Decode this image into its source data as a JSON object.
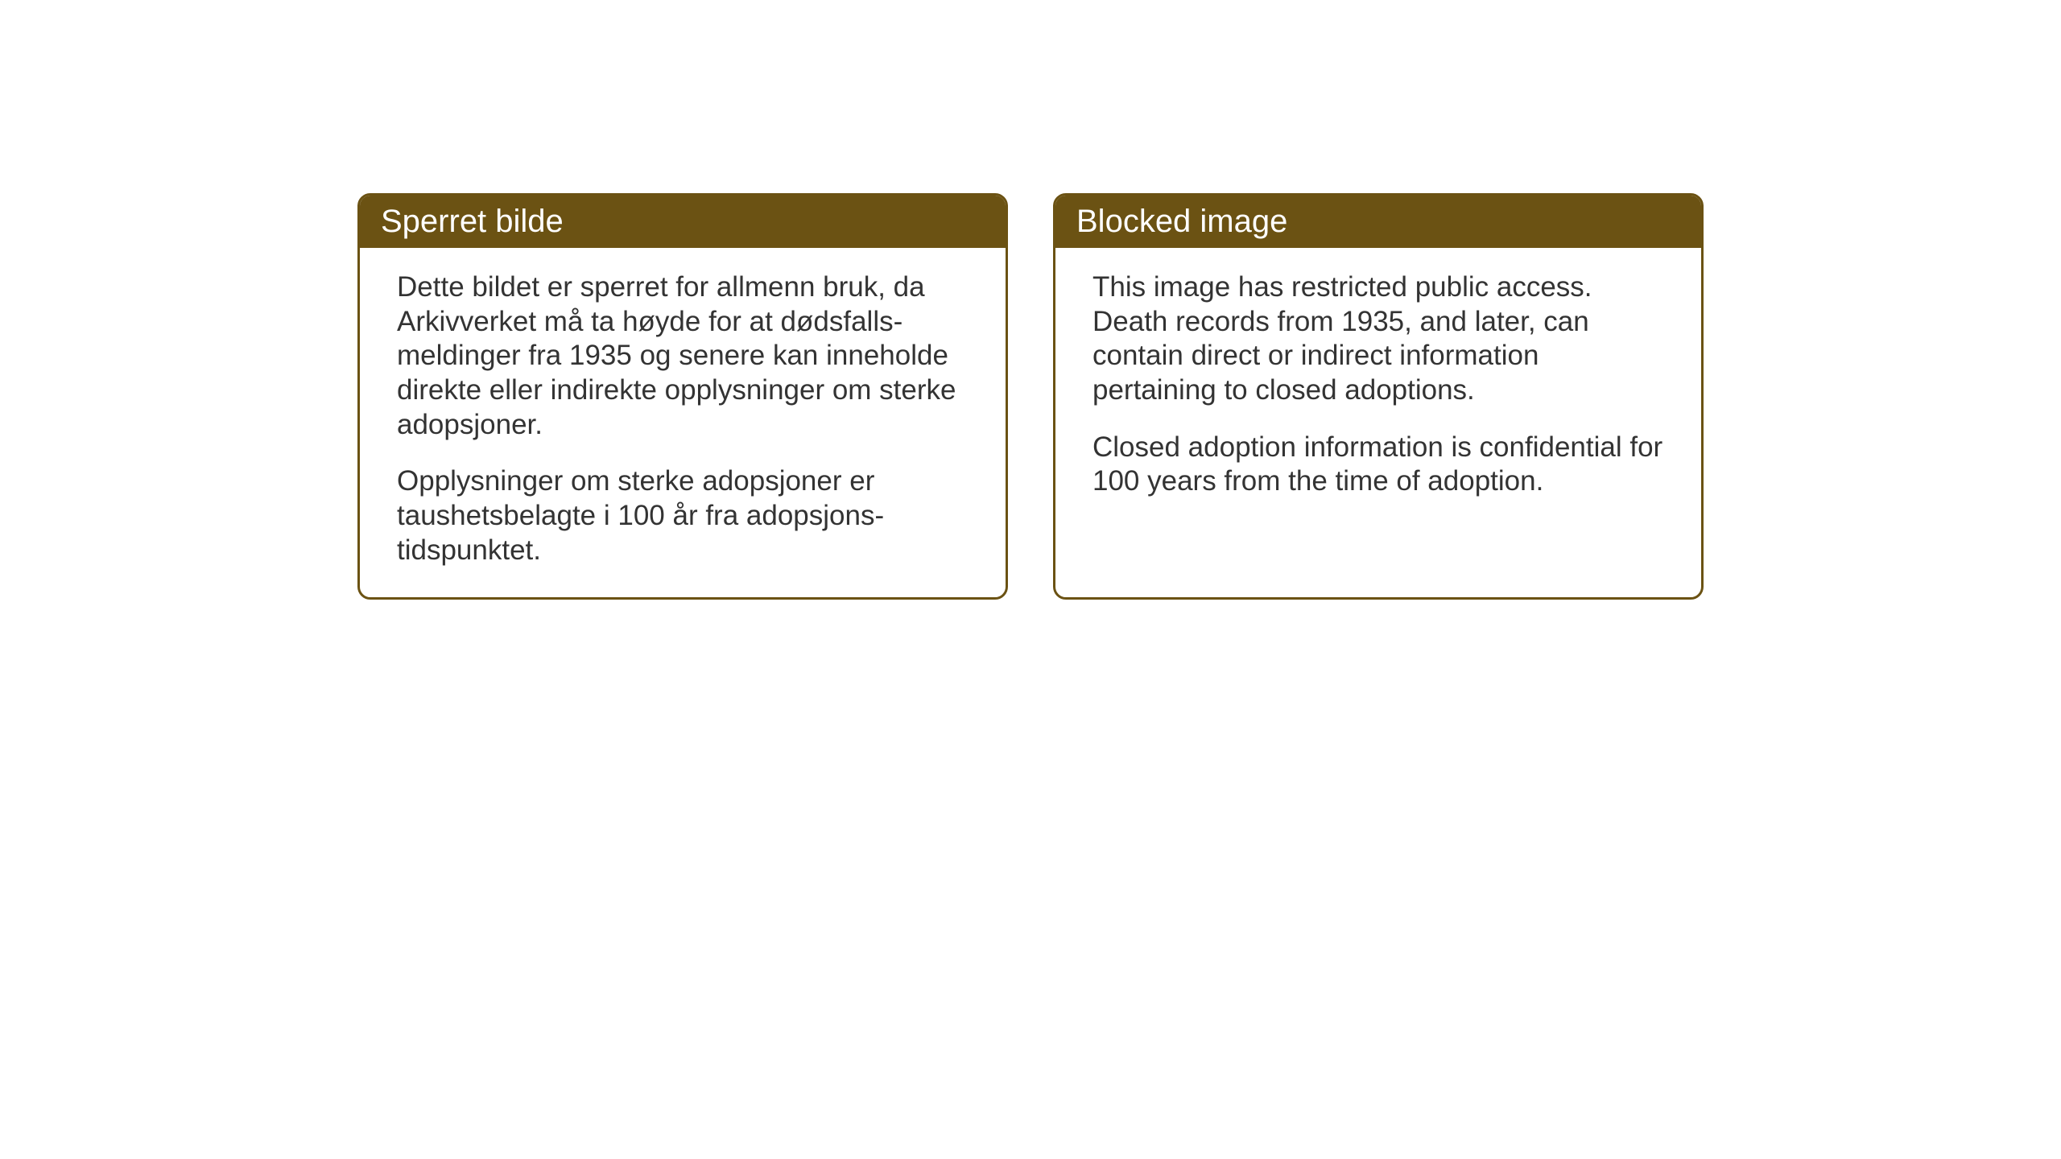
{
  "cards": {
    "norwegian": {
      "title": "Sperret bilde",
      "paragraph1": "Dette bildet er sperret for allmenn bruk, da Arkivverket må ta høyde for at dødsfalls-meldinger fra 1935 og senere kan inneholde direkte eller indirekte opplysninger om sterke adopsjoner.",
      "paragraph2": "Opplysninger om sterke adopsjoner er taushetsbelagte i 100 år fra adopsjons-tidspunktet."
    },
    "english": {
      "title": "Blocked image",
      "paragraph1": "This image has restricted public access. Death records from 1935, and later, can contain direct or indirect information pertaining to closed adoptions.",
      "paragraph2": "Closed adoption information is confidential for 100 years from the time of adoption."
    }
  },
  "styling": {
    "header_background": "#6b5213",
    "header_text_color": "#ffffff",
    "border_color": "#6b5213",
    "body_text_color": "#333333",
    "background_color": "#ffffff",
    "title_fontsize": 40,
    "body_fontsize": 35,
    "border_radius": 16,
    "border_width": 3
  }
}
